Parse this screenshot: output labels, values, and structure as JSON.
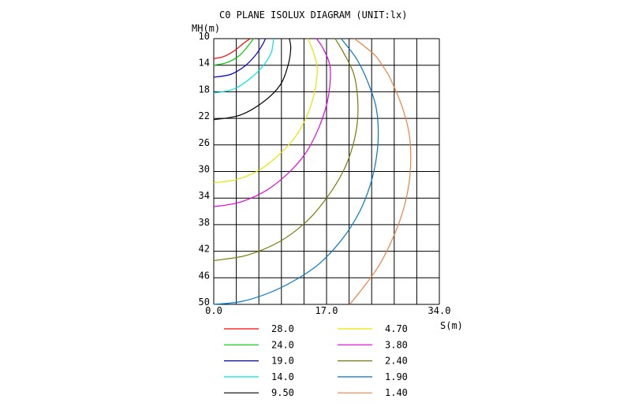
{
  "chart_data": {
    "type": "line",
    "title": "C0 PLANE ISOLUX DIAGRAM (UNIT:lx)",
    "ylabel": "MH(m)",
    "xlabel": "S(m)",
    "xlim": [
      0,
      34
    ],
    "ylim": [
      10,
      50
    ],
    "y_direction": "down",
    "grid": true,
    "x_ticks": [
      "0.0",
      "17.0",
      "34.0"
    ],
    "y_ticks": [
      "10",
      "14",
      "18",
      "22",
      "26",
      "30",
      "34",
      "38",
      "42",
      "46",
      "50"
    ],
    "legend_placement": "bottom",
    "series": [
      {
        "name": "28.0",
        "color": "#ff0000",
        "points": [
          [
            0,
            13.0
          ],
          [
            1.5,
            12.7
          ],
          [
            3.0,
            11.9
          ],
          [
            4.5,
            10.7
          ],
          [
            5.5,
            10.0
          ]
        ]
      },
      {
        "name": "24.0",
        "color": "#00cc00",
        "points": [
          [
            0,
            14.0
          ],
          [
            2.0,
            13.6
          ],
          [
            3.8,
            12.6
          ],
          [
            5.0,
            11.3
          ],
          [
            6.0,
            10.0
          ]
        ]
      },
      {
        "name": "19.0",
        "color": "#0000cc",
        "points": [
          [
            0,
            15.8
          ],
          [
            2.5,
            15.4
          ],
          [
            4.6,
            14.2
          ],
          [
            6.2,
            12.6
          ],
          [
            7.3,
            11.0
          ],
          [
            7.8,
            10.0
          ]
        ]
      },
      {
        "name": "14.0",
        "color": "#00e5e5",
        "points": [
          [
            0,
            18.2
          ],
          [
            3.0,
            17.6
          ],
          [
            5.5,
            16.0
          ],
          [
            7.5,
            14.0
          ],
          [
            8.7,
            12.0
          ],
          [
            9.0,
            10.0
          ]
        ]
      },
      {
        "name": "9.50",
        "color": "#000000",
        "points": [
          [
            0,
            22.2
          ],
          [
            4.0,
            21.5
          ],
          [
            7.5,
            19.5
          ],
          [
            10.0,
            17.0
          ],
          [
            11.2,
            14.0
          ],
          [
            11.6,
            11.5
          ],
          [
            11.4,
            10.0
          ]
        ]
      },
      {
        "name": "4.70",
        "color": "#e5e500",
        "points": [
          [
            0,
            31.7
          ],
          [
            3.5,
            31.2
          ],
          [
            7.0,
            29.7
          ],
          [
            10.0,
            27.3
          ],
          [
            12.5,
            24.5
          ],
          [
            14.3,
            21.0
          ],
          [
            15.3,
            17.5
          ],
          [
            15.6,
            14.5
          ],
          [
            15.0,
            12.0
          ],
          [
            14.2,
            10.0
          ]
        ]
      },
      {
        "name": "3.80",
        "color": "#e500e5",
        "points": [
          [
            0,
            35.3
          ],
          [
            4.0,
            34.6
          ],
          [
            8.0,
            32.8
          ],
          [
            11.5,
            30.0
          ],
          [
            14.0,
            27.0
          ],
          [
            15.8,
            23.5
          ],
          [
            17.0,
            20.0
          ],
          [
            17.5,
            17.0
          ],
          [
            17.5,
            14.0
          ],
          [
            16.5,
            11.5
          ],
          [
            15.5,
            10.0
          ]
        ]
      },
      {
        "name": "2.40",
        "color": "#7a7a00",
        "points": [
          [
            0,
            43.4
          ],
          [
            5.0,
            42.6
          ],
          [
            10.0,
            40.5
          ],
          [
            14.0,
            37.5
          ],
          [
            17.0,
            34.0
          ],
          [
            19.5,
            30.0
          ],
          [
            21.0,
            26.0
          ],
          [
            21.7,
            22.0
          ],
          [
            21.6,
            18.0
          ],
          [
            21.0,
            15.0
          ],
          [
            19.5,
            12.0
          ],
          [
            18.3,
            10.0
          ]
        ]
      },
      {
        "name": "1.90",
        "color": "#0077cc",
        "points": [
          [
            0,
            50.0
          ],
          [
            4.0,
            49.6
          ],
          [
            8.0,
            48.4
          ],
          [
            12.0,
            46.5
          ],
          [
            16.0,
            43.8
          ],
          [
            19.5,
            40.0
          ],
          [
            22.0,
            36.0
          ],
          [
            23.6,
            32.0
          ],
          [
            24.5,
            28.0
          ],
          [
            24.8,
            24.0
          ],
          [
            24.4,
            20.0
          ],
          [
            23.0,
            16.0
          ],
          [
            21.5,
            13.0
          ],
          [
            20.0,
            11.0
          ],
          [
            19.2,
            10.0
          ]
        ]
      },
      {
        "name": "1.40",
        "color": "#f08040",
        "points": [
          [
            20.5,
            50.0
          ],
          [
            22.5,
            47.5
          ],
          [
            25.0,
            44.0
          ],
          [
            27.0,
            40.0
          ],
          [
            28.5,
            36.0
          ],
          [
            29.4,
            32.0
          ],
          [
            29.7,
            28.0
          ],
          [
            29.4,
            24.0
          ],
          [
            28.3,
            20.0
          ],
          [
            26.6,
            16.0
          ],
          [
            25.4,
            14.0
          ],
          [
            24.3,
            12.5
          ],
          [
            22.5,
            11.0
          ],
          [
            21.2,
            10.0
          ]
        ]
      }
    ]
  }
}
